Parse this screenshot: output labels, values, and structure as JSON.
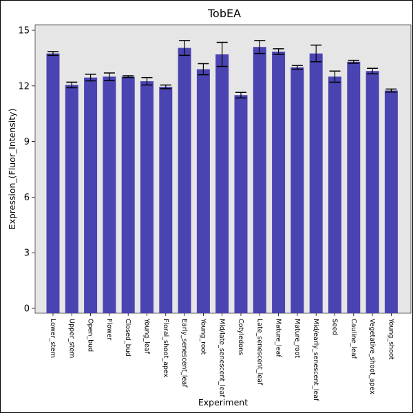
{
  "chart_data": {
    "type": "bar",
    "title": "TobEA",
    "xlabel": "Experiment",
    "ylabel": "Expression_(Fluor_Intensity)",
    "ylim": [
      0,
      15
    ],
    "yticks": [
      0,
      3,
      6,
      9,
      12,
      15
    ],
    "grid": false,
    "categories": [
      "Lower_stem",
      "Upper_stem",
      "Open_bud",
      "Flower",
      "Closed_bud",
      "Young_leaf",
      "Floral_shoot_apex",
      "Early_senescent_leaf",
      "Young_root",
      "Mid/late_senescent_leaf",
      "Cotyledons",
      "Late_senescent_leaf",
      "Mature_leaf",
      "Mature_root",
      "Mid/early_senescent_leaf",
      "Seed",
      "Cauline_leaf",
      "Vegetative_shoot_apex",
      "Young_shoot"
    ],
    "values": [
      13.75,
      12.05,
      12.45,
      12.5,
      12.5,
      12.25,
      11.95,
      14.05,
      12.9,
      13.7,
      11.5,
      14.1,
      13.85,
      13.0,
      13.75,
      12.5,
      13.3,
      12.8,
      11.75
    ],
    "errors": [
      0.1,
      0.15,
      0.18,
      0.2,
      0.05,
      0.2,
      0.1,
      0.4,
      0.3,
      0.65,
      0.15,
      0.35,
      0.15,
      0.1,
      0.45,
      0.3,
      0.08,
      0.15,
      0.08
    ],
    "bar_color": "#4a44b2",
    "plot_background": "#e6e6e6"
  }
}
